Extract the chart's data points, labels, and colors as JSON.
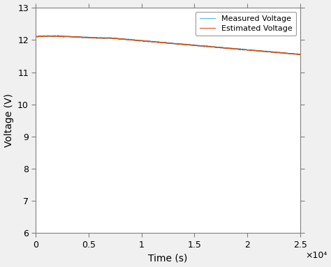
{
  "xlabel": "Time (s)",
  "ylabel": "Voltage (V)",
  "xlim": [
    0,
    25000
  ],
  "ylim": [
    6,
    13
  ],
  "yticks": [
    6,
    7,
    8,
    9,
    10,
    11,
    12,
    13
  ],
  "xticks": [
    0,
    5000,
    10000,
    15000,
    20000,
    25000
  ],
  "xticklabels": [
    "0",
    "0.5",
    "1",
    "1.5",
    "2",
    "2.5"
  ],
  "xscale_label": "×10⁴",
  "measured_color": "#4DBEEE",
  "estimated_color": "#D95319",
  "legend_labels": [
    "Measured Voltage",
    "Estimated Voltage"
  ],
  "plot_bg_color": "#FFFFFF",
  "fig_bg_color": "#F0F0F0",
  "spine_color": "#808080",
  "x_start": 0,
  "x_end": 25000,
  "n_points": 2500,
  "noise_amplitude": 0.008
}
